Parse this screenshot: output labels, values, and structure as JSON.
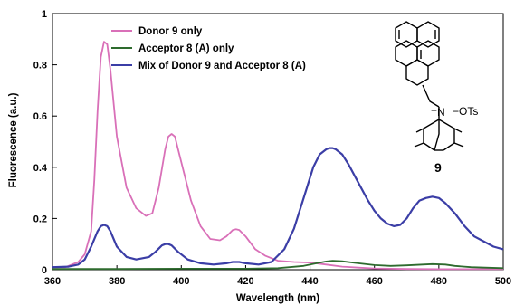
{
  "chart_data": {
    "type": "line",
    "xlabel": "Wavelength (nm)",
    "ylabel": "Fluorescence (a.u.)",
    "xlim": [
      360,
      500
    ],
    "ylim": [
      0,
      1
    ],
    "xticks": [
      360,
      380,
      400,
      420,
      440,
      460,
      480,
      500
    ],
    "yticks": [
      0,
      0.2,
      0.4,
      0.6,
      0.8,
      1
    ],
    "ytick_labels": [
      "0",
      "0.2",
      "0.4",
      "0.6",
      "0.8",
      "1"
    ],
    "grid": false,
    "legend_position": "top-left",
    "series": [
      {
        "name": "Donor 9 only",
        "color": "#d970b8",
        "x": [
          360,
          364,
          368,
          370,
          372,
          373,
          374,
          375,
          376,
          377,
          378,
          380,
          383,
          386,
          389,
          391,
          393,
          395,
          396,
          397,
          398,
          400,
          403,
          406,
          409,
          412,
          414,
          416,
          417,
          418,
          420,
          423,
          426,
          430,
          435,
          440,
          445,
          450,
          455,
          460,
          470,
          480,
          490,
          500
        ],
        "y": [
          0.01,
          0.01,
          0.03,
          0.06,
          0.15,
          0.35,
          0.62,
          0.83,
          0.89,
          0.88,
          0.78,
          0.52,
          0.32,
          0.24,
          0.21,
          0.22,
          0.32,
          0.47,
          0.52,
          0.53,
          0.52,
          0.42,
          0.27,
          0.17,
          0.12,
          0.115,
          0.13,
          0.155,
          0.158,
          0.155,
          0.13,
          0.08,
          0.055,
          0.035,
          0.03,
          0.028,
          0.02,
          0.012,
          0.008,
          0.005,
          0.003,
          0.002,
          0.002,
          0.002
        ]
      },
      {
        "name": "Acceptor 8 (A) only",
        "color": "#2e6b2e",
        "x": [
          360,
          380,
          400,
          420,
          430,
          438,
          442,
          445,
          447,
          450,
          455,
          460,
          465,
          470,
          475,
          478,
          482,
          485,
          490,
          500
        ],
        "y": [
          0.003,
          0.003,
          0.004,
          0.004,
          0.006,
          0.015,
          0.025,
          0.032,
          0.035,
          0.033,
          0.025,
          0.018,
          0.015,
          0.017,
          0.02,
          0.022,
          0.02,
          0.015,
          0.01,
          0.006
        ]
      },
      {
        "name": "Mix of Donor 9 and Acceptor 8 (A)",
        "color": "#3b3ea6",
        "x": [
          360,
          365,
          368,
          370,
          372,
          374,
          375,
          376,
          377,
          378,
          380,
          383,
          386,
          390,
          392,
          394,
          395,
          396,
          397,
          399,
          402,
          406,
          410,
          414,
          416,
          418,
          420,
          424,
          428,
          432,
          435,
          438,
          441,
          443,
          445,
          446,
          447,
          448,
          450,
          452,
          455,
          458,
          460,
          462,
          464,
          466,
          468,
          470,
          472,
          474,
          476,
          478,
          480,
          482,
          485,
          488,
          491,
          494,
          497,
          500
        ],
        "y": [
          0.01,
          0.012,
          0.02,
          0.04,
          0.09,
          0.15,
          0.17,
          0.175,
          0.17,
          0.15,
          0.09,
          0.05,
          0.04,
          0.05,
          0.07,
          0.095,
          0.1,
          0.1,
          0.095,
          0.07,
          0.04,
          0.025,
          0.02,
          0.025,
          0.03,
          0.03,
          0.025,
          0.02,
          0.03,
          0.08,
          0.16,
          0.28,
          0.4,
          0.45,
          0.47,
          0.475,
          0.475,
          0.47,
          0.45,
          0.41,
          0.34,
          0.27,
          0.23,
          0.2,
          0.18,
          0.17,
          0.175,
          0.2,
          0.24,
          0.27,
          0.28,
          0.285,
          0.28,
          0.26,
          0.22,
          0.17,
          0.13,
          0.11,
          0.09,
          0.08
        ]
      }
    ],
    "annotation": {
      "counterion": "−OTs",
      "charge": "+",
      "nitrogen": "N",
      "compound_number": "9"
    }
  }
}
